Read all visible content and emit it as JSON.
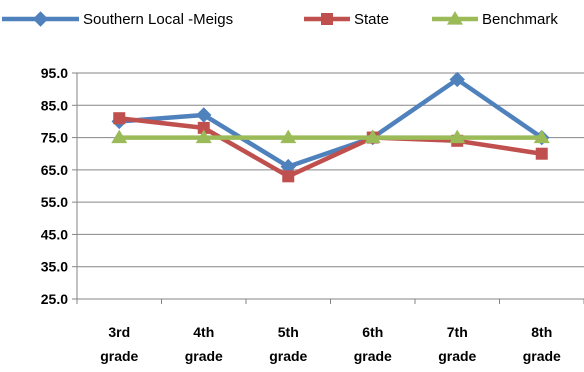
{
  "chart_data": {
    "type": "line",
    "title": "",
    "xlabel": "",
    "ylabel": "",
    "categories": [
      [
        "3rd",
        "grade"
      ],
      [
        "4th",
        "grade"
      ],
      [
        "5th",
        "grade"
      ],
      [
        "6th",
        "grade"
      ],
      [
        "7th",
        "grade"
      ],
      [
        "8th",
        "grade"
      ]
    ],
    "ylim": [
      25,
      95
    ],
    "yticks": [
      95,
      85,
      75,
      65,
      55,
      45,
      35,
      25
    ],
    "ytick_labels": [
      "95.0",
      "85.0",
      "75.0",
      "65.0",
      "55.0",
      "45.0",
      "35.0",
      "25.0"
    ],
    "grid": "horizontal",
    "legend_position": "top",
    "series": [
      {
        "name": "Southern Local -Meigs",
        "color": "#4F81BD",
        "marker": "diamond",
        "values": [
          80,
          82,
          66,
          75,
          93,
          75
        ]
      },
      {
        "name": "State",
        "color": "#C0504D",
        "marker": "square",
        "values": [
          81,
          78,
          63,
          75,
          74,
          70
        ]
      },
      {
        "name": "Benchmark",
        "color": "#9BBB59",
        "marker": "triangle",
        "values": [
          75,
          75,
          75,
          75,
          75,
          75
        ]
      }
    ]
  }
}
